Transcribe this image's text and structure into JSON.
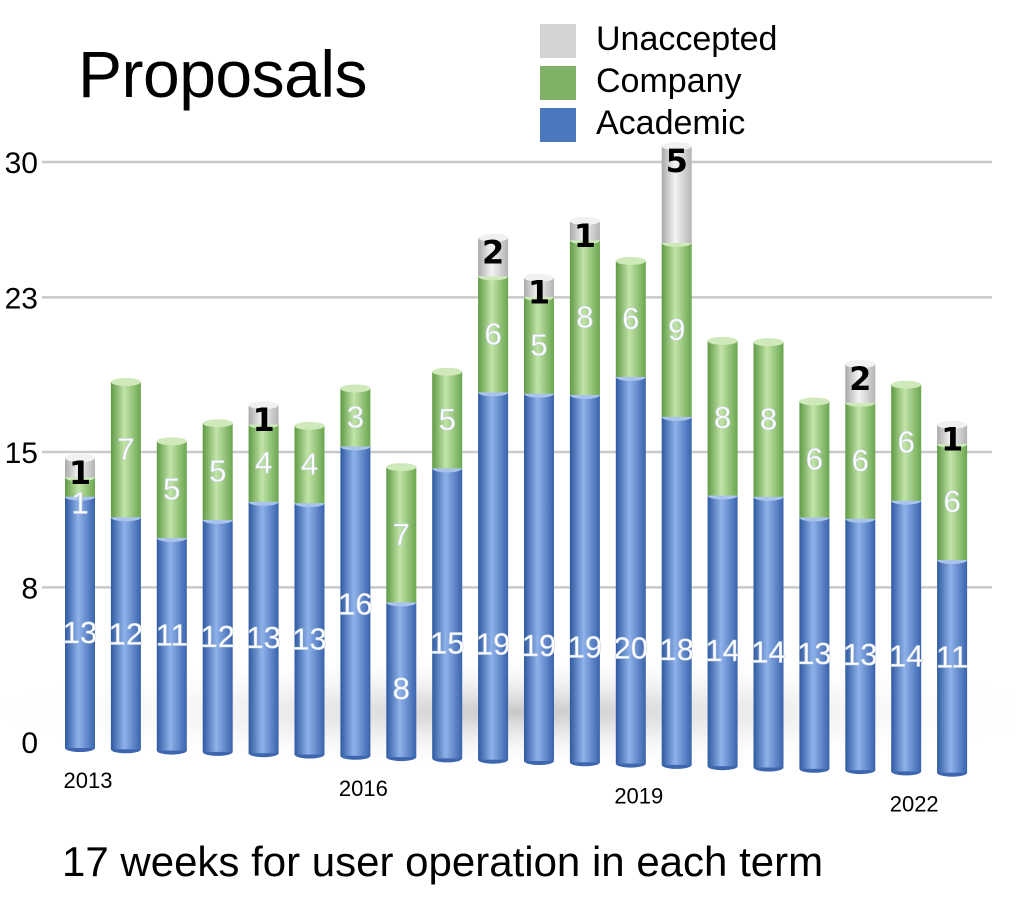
{
  "title": "Proposals",
  "subtitle": "17 weeks for user operation in each term",
  "legend": [
    {
      "label": "Unaccepted",
      "color": "#d3d3d3"
    },
    {
      "label": "Company",
      "color": "#7fb166"
    },
    {
      "label": "Academic",
      "color": "#4b77bf"
    }
  ],
  "chart_data": {
    "type": "bar",
    "stacked": true,
    "title": "Proposals",
    "xlabel": "",
    "ylabel": "",
    "ylim": [
      0,
      30
    ],
    "y_ticks": [
      0,
      8,
      15,
      23,
      30
    ],
    "grid": true,
    "legend_position": "top-right",
    "x_tick_labels": [
      {
        "index": 0,
        "label": "2013"
      },
      {
        "index": 6,
        "label": "2016"
      },
      {
        "index": 12,
        "label": "2019"
      },
      {
        "index": 18,
        "label": "2022"
      }
    ],
    "categories": [
      "",
      "",
      "",
      "",
      "",
      "",
      "",
      "",
      "",
      "",
      "",
      "",
      "",
      "",
      "",
      "",
      "",
      "",
      "",
      ""
    ],
    "series": [
      {
        "name": "Academic",
        "color": "#4b77bf",
        "values": [
          13,
          12,
          11,
          12,
          13,
          13,
          16,
          8,
          15,
          19,
          19,
          19,
          20,
          18,
          14,
          14,
          13,
          13,
          14,
          11
        ]
      },
      {
        "name": "Company",
        "color": "#8ec274",
        "values": [
          1,
          7,
          5,
          5,
          4,
          4,
          3,
          7,
          5,
          6,
          5,
          8,
          6,
          9,
          8,
          8,
          6,
          6,
          6,
          6
        ]
      },
      {
        "name": "Unaccepted",
        "color": "#d8d8d8",
        "values": [
          1,
          0,
          0,
          0,
          1,
          0,
          0,
          0,
          0,
          2,
          1,
          1,
          0,
          5,
          0,
          0,
          0,
          2,
          0,
          1
        ]
      }
    ]
  }
}
